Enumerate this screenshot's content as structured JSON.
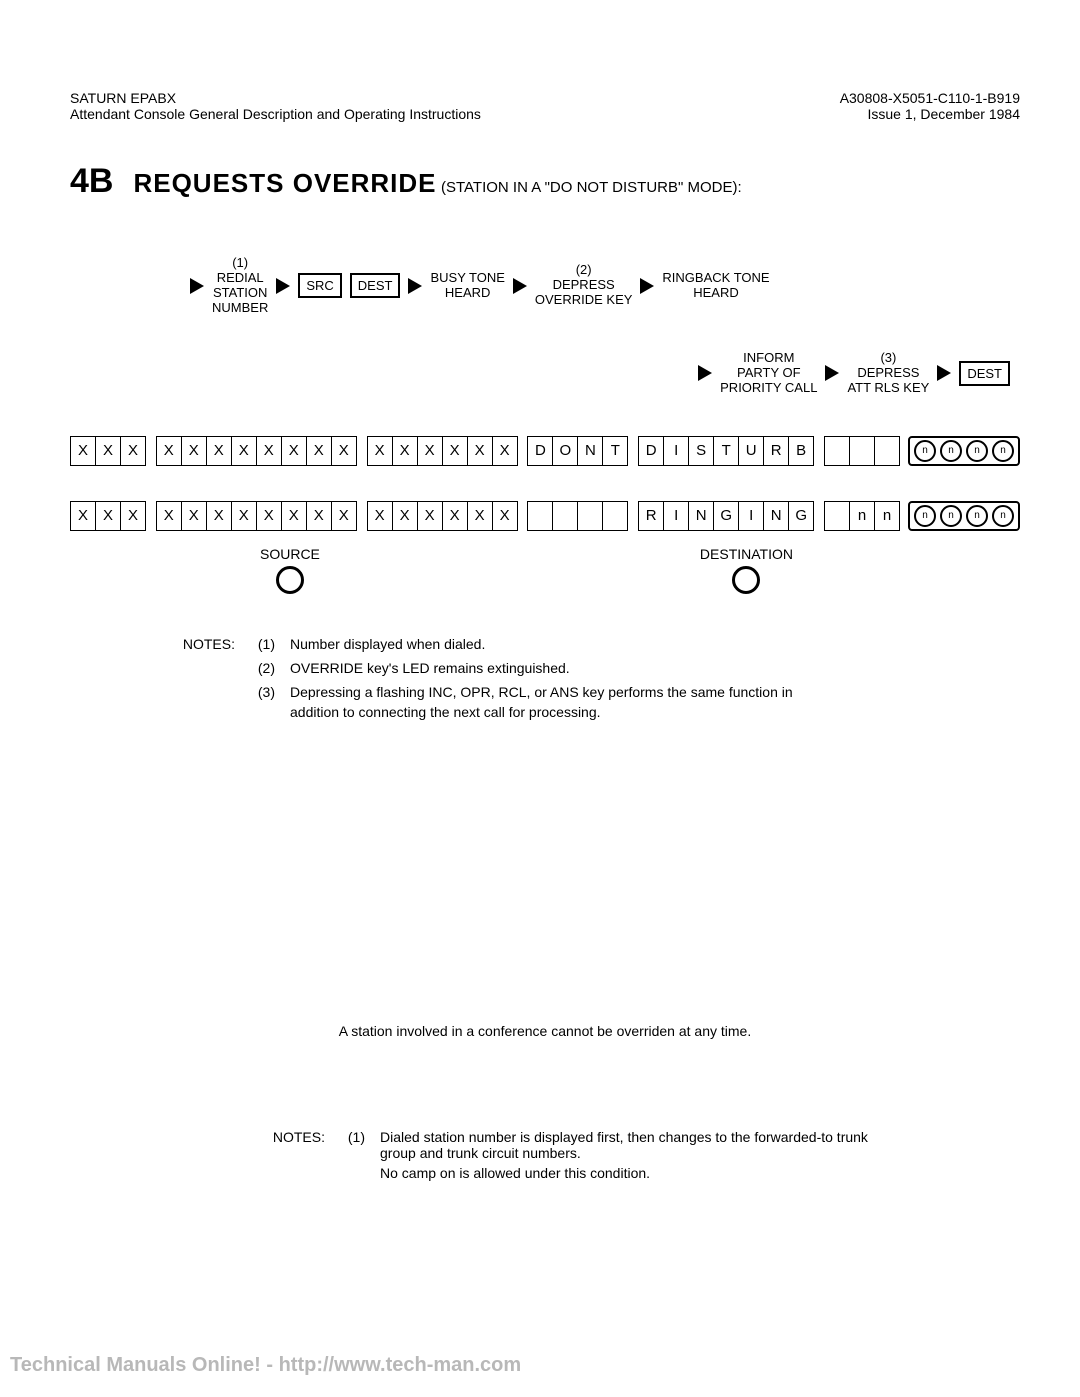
{
  "header": {
    "left_line1": "SATURN EPABX",
    "left_line2": "Attendant Console General Description and Operating Instructions",
    "right_line1": "A30808-X5051-C110-1-B919",
    "right_line2": "Issue 1, December 1984"
  },
  "title": {
    "section_number": "4B",
    "section_title": "REQUESTS OVERRIDE",
    "section_subtitle": "(STATION IN A \"DO NOT DISTURB\" MODE):"
  },
  "flow": {
    "step1_num": "(1)",
    "step1_l1": "REDIAL",
    "step1_l2": "STATION",
    "step1_l3": "NUMBER",
    "src_box": "SRC",
    "dest_box": "DEST",
    "busy_l1": "BUSY TONE",
    "busy_l2": "HEARD",
    "step2_num": "(2)",
    "step2_l1": "DEPRESS",
    "step2_l2": "OVERRIDE KEY",
    "ring_l1": "RINGBACK TONE",
    "ring_l2": "HEARD",
    "inform_l1": "INFORM",
    "inform_l2": "PARTY OF",
    "inform_l3": "PRIORITY CALL",
    "step3_num": "(3)",
    "step3_l1": "DEPRESS",
    "step3_l2": "ATT RLS KEY",
    "dest_box2": "DEST"
  },
  "display1": {
    "g1": [
      "X",
      "X",
      "X"
    ],
    "g2": [
      "X",
      "X",
      "X",
      "X",
      "X",
      "X",
      "X",
      "X"
    ],
    "g3": [
      "X",
      "X",
      "X",
      "X",
      "X",
      "X"
    ],
    "g4": [
      "D",
      "O",
      "N",
      "T"
    ],
    "g5": [
      "D",
      "I",
      "S",
      "T",
      "U",
      "R",
      "B"
    ],
    "g6": [
      "",
      "",
      ""
    ],
    "lamps": [
      "n",
      "n",
      "n",
      "n"
    ]
  },
  "display2": {
    "g1": [
      "X",
      "X",
      "X"
    ],
    "g2": [
      "X",
      "X",
      "X",
      "X",
      "X",
      "X",
      "X",
      "X"
    ],
    "g3": [
      "X",
      "X",
      "X",
      "X",
      "X",
      "X"
    ],
    "g4": [
      "",
      "",
      "",
      ""
    ],
    "g5": [
      "R",
      "I",
      "N",
      "G",
      "I",
      "N",
      "G"
    ],
    "g6": [
      "",
      "n",
      "n"
    ],
    "lamps": [
      "n",
      "n",
      "n",
      "n"
    ]
  },
  "labels": {
    "source": "SOURCE",
    "destination": "DESTINATION"
  },
  "notes_label": "NOTES:",
  "notes": [
    {
      "n": "(1)",
      "t": "Number displayed when dialed."
    },
    {
      "n": "(2)",
      "t": "OVERRIDE key's LED remains extinguished."
    },
    {
      "n": "(3)",
      "t": "Depressing a flashing INC, OPR, RCL, or ANS key performs the same function in addition to connecting the next call for processing."
    }
  ],
  "mid_note": "A station involved in a conference cannot be overriden at any time.",
  "foot_notes_label": "NOTES:",
  "foot_notes": [
    {
      "n": "(1)",
      "t": "Dialed station number is displayed first, then changes to the forwarded-to trunk group and trunk circuit numbers."
    },
    {
      "n": "",
      "t": "No camp on is allowed under this condition."
    }
  ],
  "watermark": "Technical Manuals Online! - http://www.tech-man.com"
}
